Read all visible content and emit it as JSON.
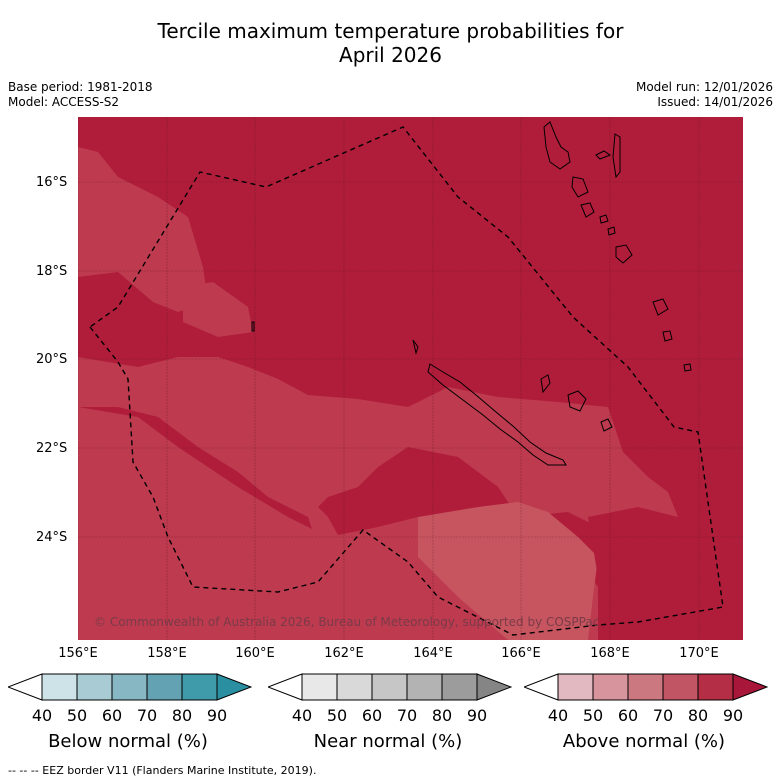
{
  "title_line1": "Tercile maximum temperature probabilities for",
  "title_line2": "April 2026",
  "meta_left": [
    "Base period: 1981-2018",
    "Model: ACCESS-S2"
  ],
  "meta_right": [
    "Model run: 12/01/2026",
    "Issued: 14/01/2026"
  ],
  "lat_labels": [
    "16°S",
    "18°S",
    "20°S",
    "22°S",
    "24°S"
  ],
  "lon_labels": [
    "156°E",
    "158°E",
    "160°E",
    "162°E",
    "164°E",
    "166°E",
    "168°E",
    "170°E"
  ],
  "copyright": "© Commonwealth of Australia 2026, Bureau of Meteorology, supported by COSPPac",
  "colorbars": [
    {
      "title": "Below normal (%)",
      "ticks": [
        "40",
        "50",
        "60",
        "70",
        "80",
        "90"
      ],
      "colors": [
        "#ffffff",
        "#cde3e8",
        "#a9cbd3",
        "#87b7c2",
        "#62a2b2",
        "#3f9aaa",
        "#2a8fa0"
      ]
    },
    {
      "title": "Near normal (%)",
      "ticks": [
        "40",
        "50",
        "60",
        "70",
        "80",
        "90"
      ],
      "colors": [
        "#ffffff",
        "#e8e8e8",
        "#d9d9d9",
        "#c6c6c6",
        "#b3b3b3",
        "#9c9c9c",
        "#858585"
      ]
    },
    {
      "title": "Above normal (%)",
      "ticks": [
        "40",
        "50",
        "60",
        "70",
        "80",
        "90"
      ],
      "colors": [
        "#ffffff",
        "#e2b9c0",
        "#d8949c",
        "#cc7880",
        "#c15563",
        "#b42f46",
        "#a8163a"
      ]
    }
  ],
  "footer": "--  --  -- EEZ border V11 (Flanders Marine Institute, 2019).",
  "colors": {
    "dominant": "#b01d3a",
    "lighter": "#bd3a4f",
    "lightest": "#c7555f"
  }
}
